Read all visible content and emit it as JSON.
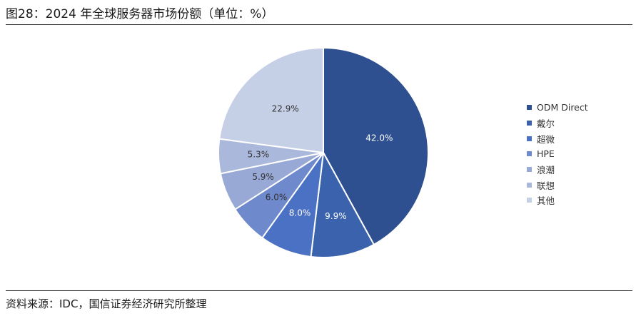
{
  "figure": {
    "title": "图28：2024 年全球服务器市场份额（单位：%）",
    "source": "资料来源：IDC，国信证券经济研究所整理"
  },
  "chart_data": {
    "type": "pie",
    "title": "图28：2024 年全球服务器市场份额（单位：%）",
    "unit": "%",
    "legend_position": "right",
    "categories": [
      "ODM Direct",
      "戴尔",
      "超微",
      "HPE",
      "浪潮",
      "联想",
      "其他"
    ],
    "values": [
      42.0,
      9.9,
      8.0,
      6.0,
      5.9,
      5.3,
      22.9
    ],
    "labels": [
      "42.0%",
      "9.9%",
      "8.0%",
      "6.0%",
      "5.9%",
      "5.3%",
      "22.9%"
    ],
    "colors": [
      "#2e5090",
      "#3a62ad",
      "#4a71c4",
      "#6e89cc",
      "#98a9d6",
      "#aab8dc",
      "#c5cfe6"
    ],
    "label_colors": [
      "#ffffff",
      "#ffffff",
      "#ffffff",
      "#333333",
      "#333333",
      "#333333",
      "#333333"
    ]
  }
}
